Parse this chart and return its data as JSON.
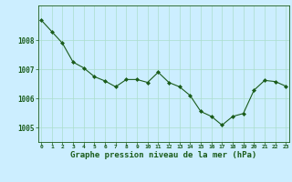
{
  "x": [
    0,
    1,
    2,
    3,
    4,
    5,
    6,
    7,
    8,
    9,
    10,
    11,
    12,
    13,
    14,
    15,
    16,
    17,
    18,
    19,
    20,
    21,
    22,
    23
  ],
  "y": [
    1008.7,
    1008.3,
    1007.9,
    1007.25,
    1007.05,
    1006.75,
    1006.6,
    1006.4,
    1006.65,
    1006.65,
    1006.55,
    1006.9,
    1006.55,
    1006.4,
    1006.1,
    1005.55,
    1005.38,
    1005.08,
    1005.38,
    1005.48,
    1006.28,
    1006.62,
    1006.58,
    1006.42
  ],
  "line_color": "#1a5c1a",
  "marker_color": "#1a5c1a",
  "bg_color": "#cceeff",
  "grid_color": "#aaddcc",
  "xlabel": "Graphe pression niveau de la mer (hPa)",
  "yticks": [
    1005,
    1006,
    1007,
    1008
  ],
  "ylim": [
    1004.5,
    1009.2
  ],
  "xlim": [
    -0.3,
    23.3
  ],
  "title_color": "#1a5c1a",
  "tick_color": "#1a5c1a",
  "xtick_fontsize": 4.5,
  "ytick_fontsize": 5.5,
  "xlabel_fontsize": 6.5
}
